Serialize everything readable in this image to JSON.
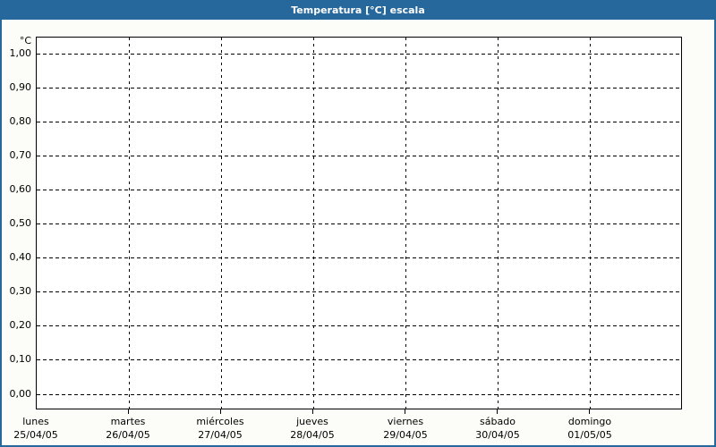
{
  "window": {
    "title_bar_text": "Temperatura [°C] escala"
  },
  "chart_data": {
    "type": "line",
    "title": "Temperatura [°C] escala",
    "ylabel": "°C",
    "ylim": [
      0,
      1
    ],
    "y_tick_step": 0.1,
    "y_ticks": [
      1.0,
      0.9,
      0.8,
      0.7,
      0.6,
      0.5,
      0.4,
      0.3,
      0.2,
      0.1,
      0.0
    ],
    "y_tick_labels": [
      "1,00",
      "0,90",
      "0,80",
      "0,70",
      "0,60",
      "0,50",
      "0,40",
      "0,30",
      "0,20",
      "0,10",
      "0,00"
    ],
    "x_categories": [
      "lunes",
      "martes",
      "miércoles",
      "jueves",
      "viernes",
      "sábado",
      "domingo"
    ],
    "x_dates": [
      "25/04/05",
      "26/04/05",
      "27/04/05",
      "28/04/05",
      "29/04/05",
      "30/04/05",
      "01/05/05"
    ],
    "series": [],
    "grid": "dashed",
    "legend": "none"
  },
  "colors": {
    "header_bg": "#26689C",
    "frame_border": "#26689C",
    "title_text": "#FFFFFF",
    "plot_border": "#000000",
    "gridline": "#000000",
    "label_text": "#000000",
    "canvas_bg": "#FCFDF9",
    "plot_bg": "#FFFFFF"
  }
}
